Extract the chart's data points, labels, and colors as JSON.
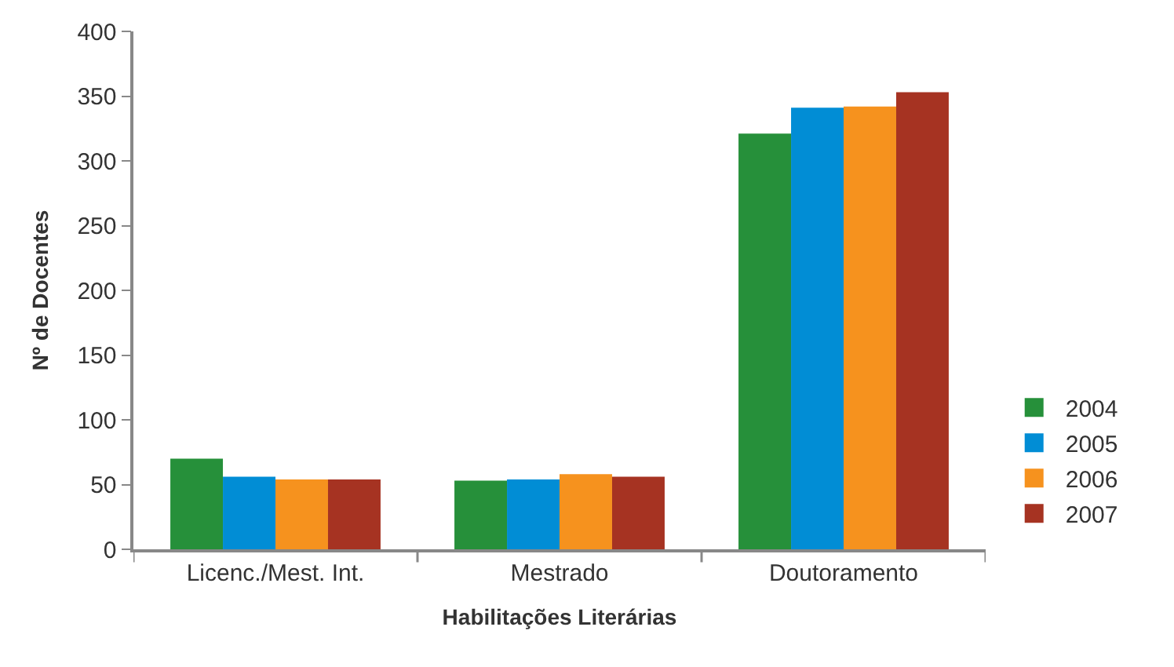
{
  "chart_data": {
    "type": "bar",
    "xlabel": "Habilitações Literárias",
    "ylabel": "Nº de Docentes",
    "categories": [
      "Licenc./Mest. Int.",
      "Mestrado",
      "Doutoramento"
    ],
    "series": [
      {
        "name": "2004",
        "color": "#26903a",
        "values": [
          70,
          53,
          321
        ]
      },
      {
        "name": "2005",
        "color": "#018dd5",
        "values": [
          56,
          54,
          341
        ]
      },
      {
        "name": "2006",
        "color": "#f6921e",
        "values": [
          54,
          58,
          342
        ]
      },
      {
        "name": "2007",
        "color": "#a63322",
        "values": [
          54,
          56,
          353
        ]
      }
    ],
    "ylim": [
      0,
      400
    ],
    "yticks": [
      0,
      50,
      100,
      150,
      200,
      250,
      300,
      350,
      400
    ],
    "legend": "right"
  }
}
